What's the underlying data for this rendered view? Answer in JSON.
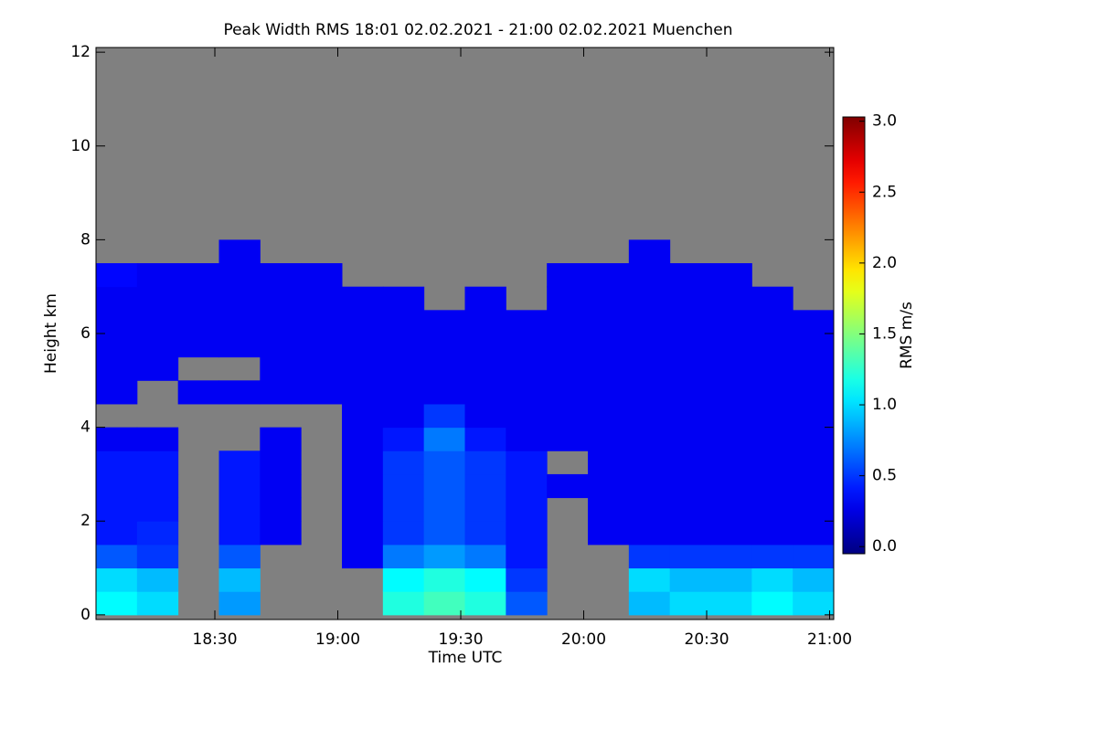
{
  "chart_data": {
    "type": "heatmap",
    "title": "Peak Width RMS   18:01 02.02.2021 - 21:00 02.02.2021 Muenchen",
    "x_label": "Time UTC",
    "y_label": "Height km",
    "colorbar_label": "RMS m/s",
    "colormap": "jet",
    "missing_color": "#808080",
    "x": [
      1086,
      1096,
      1106,
      1116,
      1126,
      1136,
      1146,
      1156,
      1166,
      1176,
      1186,
      1196,
      1206,
      1216,
      1226,
      1236,
      1246,
      1256
    ],
    "y": [
      0.25,
      0.75,
      1.25,
      1.75,
      2.25,
      2.75,
      3.25,
      3.75,
      4.25,
      4.75,
      5.25,
      5.75,
      6.25,
      6.75,
      7.25,
      7.75
    ],
    "z": [
      [
        1.1,
        1.0,
        null,
        0.8,
        null,
        null,
        null,
        1.2,
        1.3,
        1.2,
        0.6,
        null,
        null,
        0.9,
        1.0,
        1.0,
        1.1,
        1.0
      ],
      [
        1.0,
        0.9,
        null,
        0.9,
        null,
        null,
        null,
        1.1,
        1.2,
        1.1,
        0.5,
        null,
        null,
        1.0,
        0.9,
        0.9,
        1.0,
        0.9
      ],
      [
        0.6,
        0.5,
        null,
        0.6,
        null,
        null,
        0.3,
        0.7,
        0.8,
        0.7,
        0.4,
        null,
        null,
        0.5,
        0.5,
        0.5,
        0.5,
        0.5
      ],
      [
        0.4,
        0.45,
        null,
        0.4,
        0.3,
        null,
        0.3,
        0.5,
        0.6,
        0.5,
        0.4,
        null,
        0.3,
        0.3,
        0.3,
        0.3,
        0.3,
        0.3
      ],
      [
        0.4,
        0.4,
        null,
        0.4,
        0.3,
        null,
        0.3,
        0.5,
        0.6,
        0.5,
        0.4,
        null,
        0.3,
        0.3,
        0.3,
        0.3,
        0.3,
        0.3
      ],
      [
        0.4,
        0.4,
        null,
        0.4,
        0.3,
        null,
        0.3,
        0.5,
        0.6,
        0.5,
        0.4,
        0.3,
        0.3,
        0.3,
        0.3,
        0.3,
        0.3,
        0.3
      ],
      [
        0.4,
        0.4,
        null,
        0.4,
        0.3,
        null,
        0.3,
        0.5,
        0.6,
        0.5,
        0.4,
        null,
        0.3,
        0.3,
        0.3,
        0.3,
        0.3,
        0.3
      ],
      [
        0.3,
        0.3,
        null,
        null,
        0.3,
        null,
        0.3,
        0.4,
        0.7,
        0.4,
        0.3,
        0.3,
        0.3,
        0.3,
        0.3,
        0.3,
        0.3,
        0.3
      ],
      [
        null,
        null,
        null,
        null,
        null,
        null,
        0.3,
        0.3,
        0.5,
        0.3,
        0.3,
        0.3,
        0.3,
        0.3,
        0.3,
        0.3,
        0.3,
        0.3
      ],
      [
        0.3,
        null,
        0.3,
        0.3,
        0.3,
        0.3,
        0.3,
        0.3,
        0.3,
        0.3,
        0.3,
        0.3,
        0.3,
        0.3,
        0.3,
        0.3,
        0.3,
        0.3
      ],
      [
        0.3,
        0.3,
        null,
        null,
        0.3,
        0.3,
        0.3,
        0.3,
        0.3,
        0.3,
        0.3,
        0.3,
        0.3,
        0.3,
        0.3,
        0.3,
        0.3,
        0.3
      ],
      [
        0.3,
        0.3,
        0.3,
        0.3,
        0.3,
        0.3,
        0.3,
        0.3,
        0.3,
        0.3,
        0.3,
        0.3,
        0.3,
        0.3,
        0.3,
        0.3,
        0.3,
        0.3
      ],
      [
        0.3,
        0.3,
        0.3,
        0.3,
        0.3,
        0.3,
        0.3,
        0.3,
        0.3,
        0.3,
        0.3,
        0.3,
        0.3,
        0.3,
        0.3,
        0.3,
        0.3,
        0.3
      ],
      [
        0.3,
        0.3,
        0.3,
        0.3,
        0.3,
        0.3,
        0.3,
        0.3,
        null,
        0.3,
        null,
        0.3,
        0.3,
        0.3,
        0.3,
        0.3,
        0.3,
        null
      ],
      [
        0.35,
        0.3,
        0.3,
        0.3,
        0.3,
        0.3,
        null,
        null,
        null,
        null,
        null,
        0.3,
        0.3,
        0.3,
        0.3,
        0.3,
        null,
        null
      ],
      [
        null,
        null,
        null,
        0.3,
        null,
        null,
        null,
        null,
        null,
        null,
        null,
        null,
        null,
        0.3,
        null,
        null,
        null,
        null
      ]
    ],
    "xlim": [
      1081,
      1261
    ],
    "xticks": [
      {
        "value": 1110,
        "label": "18:30"
      },
      {
        "value": 1140,
        "label": "19:00"
      },
      {
        "value": 1170,
        "label": "19:30"
      },
      {
        "value": 1200,
        "label": "20:00"
      },
      {
        "value": 1230,
        "label": "20:30"
      },
      {
        "value": 1260,
        "label": "21:00"
      }
    ],
    "ylim": [
      -0.1,
      12.1
    ],
    "yticks": [
      0,
      2,
      4,
      6,
      8,
      10,
      12
    ],
    "zlim": [
      -0.05,
      3.03
    ],
    "zticks": [
      {
        "value": 0,
        "label": "0.0"
      },
      0.5,
      {
        "value": 1,
        "label": "1.0"
      },
      1.5,
      {
        "value": 2,
        "label": "2.0"
      },
      2.5,
      {
        "value": 3,
        "label": "3.0"
      }
    ]
  }
}
